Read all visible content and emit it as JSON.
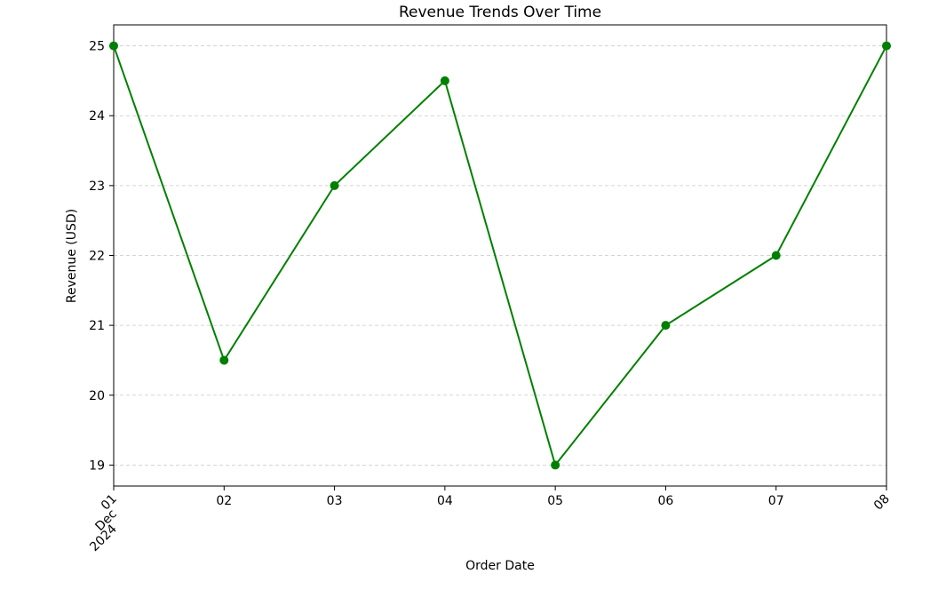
{
  "chart_data": {
    "type": "line",
    "title": "Revenue Trends Over Time",
    "xlabel": "Order Date",
    "ylabel": "Revenue (USD)",
    "x": [
      "2024-12-01",
      "2024-12-02",
      "2024-12-03",
      "2024-12-04",
      "2024-12-05",
      "2024-12-06",
      "2024-12-07",
      "2024-12-08"
    ],
    "x_tick_labels": [
      [
        "01",
        "Dec",
        "2024"
      ],
      [
        "02"
      ],
      [
        "03"
      ],
      [
        "04"
      ],
      [
        "05"
      ],
      [
        "06"
      ],
      [
        "07"
      ],
      [
        "08"
      ]
    ],
    "series": [
      {
        "values": [
          25,
          20.5,
          23,
          24.5,
          19,
          21,
          22,
          25
        ],
        "color": "#008000",
        "marker": "circle"
      }
    ],
    "y_ticks": [
      19,
      20,
      21,
      22,
      23,
      24,
      25
    ],
    "ylim": [
      18.7,
      25.3
    ],
    "xlim": [
      "2024-12-01",
      "2024-12-08"
    ],
    "x_tick_rotation": "45 degrees (first and last labels)",
    "grid": "horizontal dashed",
    "legend": "none"
  }
}
